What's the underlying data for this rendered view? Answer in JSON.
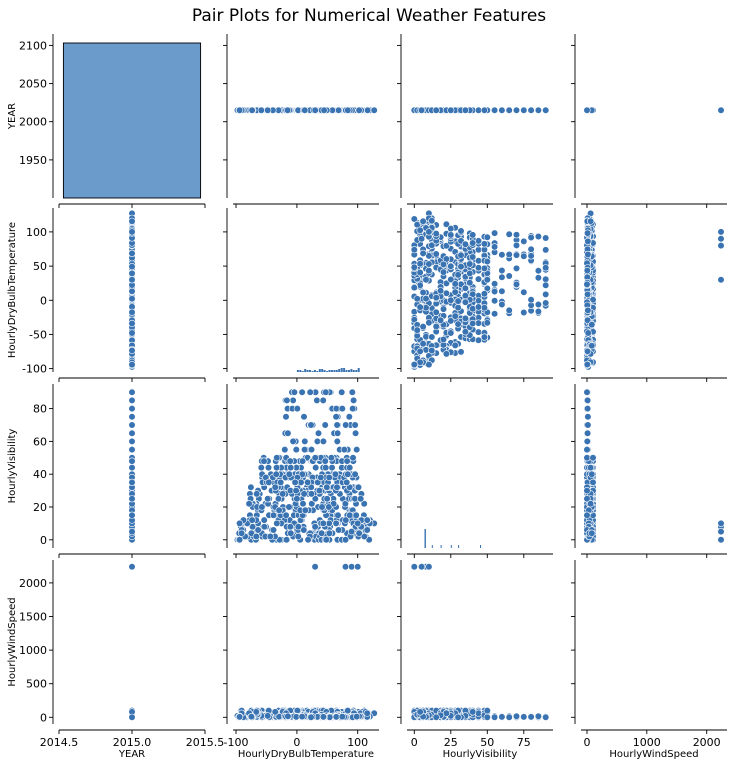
{
  "chart_data": {
    "type": "scatter",
    "subtype": "pairplot",
    "title": "Pair Plots for Numerical Weather Features",
    "variables": [
      "YEAR",
      "HourlyDryBulbTemperature",
      "HourlyVisibility",
      "HourlyWindSpeed"
    ],
    "axes": {
      "YEAR": {
        "range_as_y": [
          1900,
          2115
        ],
        "ticks_as_y": [
          "1950",
          "2000",
          "2050",
          "2100"
        ],
        "range_as_x": [
          2014.5,
          2015.5
        ],
        "ticks_as_x": [
          "2014.5",
          "2015.0",
          "2015.5"
        ]
      },
      "HourlyDryBulbTemperature": {
        "range": [
          -105,
          135
        ],
        "ticks_as_y": [
          "-100",
          "-50",
          "0",
          "50",
          "100"
        ],
        "ticks_as_x": [
          "-100",
          "0",
          "100"
        ]
      },
      "HourlyVisibility": {
        "range": [
          -5,
          95
        ],
        "ticks_as_y": [
          "0",
          "20",
          "40",
          "60",
          "80"
        ],
        "ticks_as_x": [
          "0",
          "25",
          "50",
          "75"
        ]
      },
      "HourlyWindSpeed": {
        "range": [
          -100,
          2340
        ],
        "ticks_as_y": [
          "0",
          "500",
          "1000",
          "1500",
          "2000"
        ],
        "ticks_as_x": [
          "0",
          "1000",
          "2000"
        ]
      }
    },
    "diagonal": {
      "YEAR": {
        "type": "histogram",
        "bins": [
          [
            2014.5,
            2015.5
          ]
        ],
        "counts": [
          1
        ]
      },
      "HourlyDryBulbTemperature": {
        "type": "histogram",
        "note_shape": "very low flat bars around 0-100"
      },
      "HourlyVisibility": {
        "type": "histogram",
        "spike_at": 7
      },
      "HourlyWindSpeed": {
        "type": "histogram",
        "empty": true
      }
    },
    "value_sets": {
      "YEAR": [
        2015
      ],
      "HourlyDryBulbTemperature": [
        -98,
        -95,
        -90,
        -85,
        -80,
        -75,
        -70,
        -65,
        -60,
        -55,
        -50,
        -45,
        -40,
        -35,
        -30,
        -25,
        -20,
        -15,
        -10,
        -5,
        0,
        5,
        10,
        15,
        20,
        25,
        30,
        35,
        40,
        45,
        50,
        55,
        60,
        65,
        70,
        75,
        80,
        85,
        90,
        95,
        100,
        105,
        110,
        115,
        120,
        128
      ],
      "HourlyVisibility": [
        0,
        2,
        4,
        6,
        8,
        10,
        12,
        15,
        18,
        20,
        22,
        25,
        28,
        30,
        32,
        35,
        38,
        40,
        44,
        48,
        50,
        55,
        60,
        65,
        70,
        75,
        80,
        85,
        90
      ],
      "HourlyWindSpeed": [
        0,
        5,
        10,
        15,
        20,
        30,
        40,
        60,
        80,
        100,
        2240
      ]
    },
    "scatter_summary": {
      "temp_vs_visibility": "dense cloud of points temperature -98..128 for visibility 0..50; sparse columns at visibility 55..90 with temperature -20..100",
      "windspeed_outliers": "HourlyWindSpeed = 2240 occurs at temperatures 30, 80, 90, 100 and visibility 0..10"
    }
  }
}
